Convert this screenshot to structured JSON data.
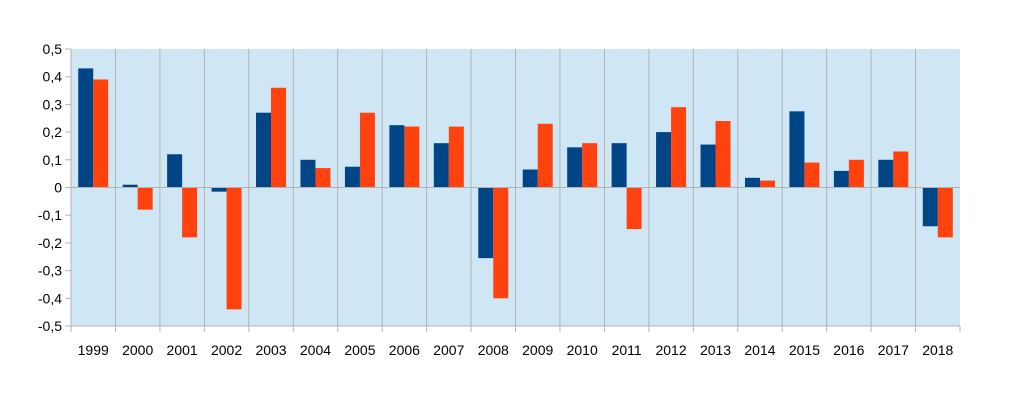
{
  "chart_data": {
    "type": "bar",
    "categories": [
      "1999",
      "2000",
      "2001",
      "2002",
      "2003",
      "2004",
      "2005",
      "2006",
      "2007",
      "2008",
      "2009",
      "2010",
      "2011",
      "2012",
      "2013",
      "2014",
      "2015",
      "2016",
      "2017",
      "2018"
    ],
    "series": [
      {
        "color": "#004586",
        "values": [
          0.43,
          0.01,
          0.12,
          -0.015,
          0.27,
          0.1,
          0.075,
          0.225,
          0.16,
          -0.255,
          0.065,
          0.145,
          0.16,
          0.2,
          0.155,
          0.035,
          0.275,
          0.06,
          0.1,
          -0.14
        ]
      },
      {
        "color": "#ff420e",
        "values": [
          0.39,
          -0.08,
          -0.18,
          -0.44,
          0.36,
          0.07,
          0.27,
          0.22,
          0.22,
          -0.4,
          0.23,
          0.16,
          -0.15,
          0.29,
          0.24,
          0.025,
          0.09,
          0.1,
          0.13,
          -0.18
        ]
      }
    ],
    "ylim": [
      -0.5,
      0.5
    ],
    "yticks": [
      0.5,
      0.4,
      0.3,
      0.2,
      0.1,
      0,
      -0.1,
      -0.2,
      -0.3,
      -0.4,
      -0.5
    ],
    "ytick_labels": [
      "0,5",
      "0,4",
      "0,3",
      "0,2",
      "0,1",
      "0",
      "-0,1",
      "-0,2",
      "-0,3",
      "-0,4",
      "-0,5"
    ],
    "title": "",
    "xlabel": "",
    "ylabel": "",
    "grid": "vertical",
    "legend": "none",
    "plot_background": "#cfe7f5"
  }
}
